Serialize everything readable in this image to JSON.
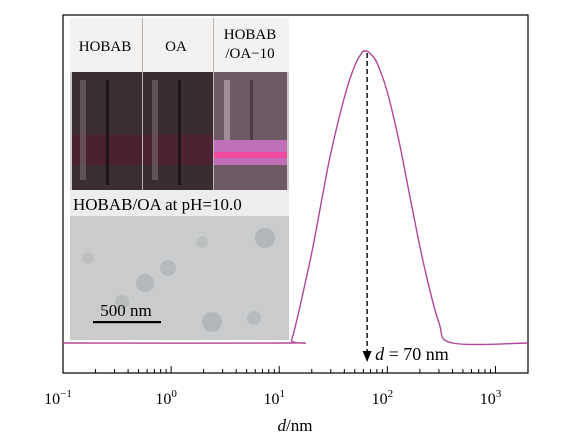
{
  "chart_data": {
    "type": "line",
    "xscale": "log",
    "xlim": [
      0.1,
      2000
    ],
    "ylim": [
      0,
      1
    ],
    "grid": false,
    "xlabel_var": "d",
    "xlabel_unit": "/nm",
    "ylabel": "",
    "x_ticks": [
      {
        "value": 0.1,
        "base": "10",
        "exp": "−1"
      },
      {
        "value": 1,
        "base": "10",
        "exp": "0"
      },
      {
        "value": 10,
        "base": "10",
        "exp": "1"
      },
      {
        "value": 100,
        "base": "10",
        "exp": "2"
      },
      {
        "value": 1000,
        "base": "10",
        "exp": "3"
      }
    ],
    "series": [
      {
        "color": "#b0479a",
        "x": [
          0.1,
          12,
          13,
          15,
          20,
          25,
          30,
          40,
          50,
          60,
          65,
          70,
          80,
          100,
          130,
          170,
          220,
          300,
          400,
          2000
        ],
        "y": [
          0,
          0,
          0.01,
          0.1,
          0.31,
          0.5,
          0.65,
          0.84,
          0.95,
          1.0,
          1.0,
          0.99,
          0.96,
          0.86,
          0.68,
          0.46,
          0.26,
          0.07,
          0.0,
          0.0
        ]
      }
    ],
    "annotation": {
      "x": 65,
      "var": "d",
      "text": " = 70 nm"
    }
  },
  "inset": {
    "photo_labels": [
      "HOBAB",
      "OA",
      "HOBAB",
      "/OA−10"
    ],
    "tem_caption": "HOBAB/OA at pH=10.0",
    "scale_bar_label": "500 nm"
  }
}
